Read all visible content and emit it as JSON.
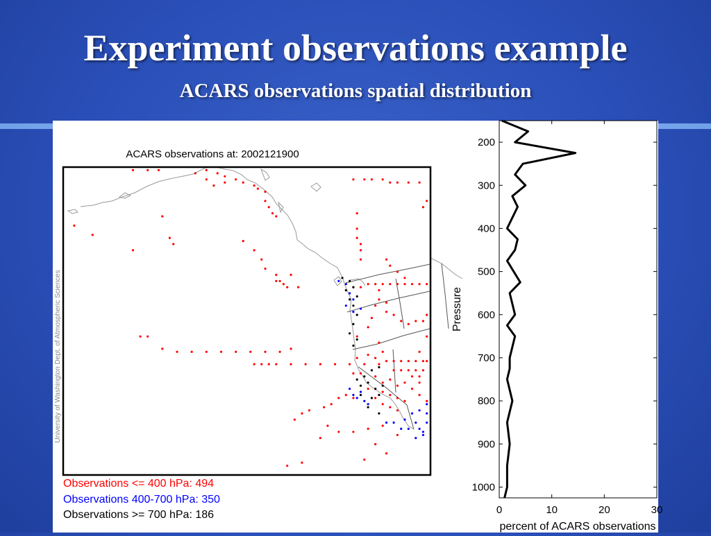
{
  "slide": {
    "title": "Experiment observations example",
    "subtitle": "ACARS observations spatial distribution"
  },
  "colors": {
    "red": "#ff0000",
    "blue": "#0000ff",
    "black": "#000000",
    "coast": "#999999"
  },
  "chart_data": [
    {
      "type": "scatter",
      "title": "ACARS observations at: 2002121900",
      "watermark": "University of Washington Dept. of Atmospheric Sciences",
      "legend": [
        {
          "label": "Observations <= 400 hPa: 494",
          "color": "#ff0000"
        },
        {
          "label": "Observations 400-700 hPa: 350",
          "color": "#0000ff"
        },
        {
          "label": "Observations >= 700 hPa: 186",
          "color": "#000000"
        }
      ],
      "series": [
        {
          "color": "#ff0000",
          "points": [
            [
              0.19,
              0.01
            ],
            [
              0.23,
              0.01
            ],
            [
              0.26,
              0.01
            ],
            [
              0.36,
              0.02
            ],
            [
              0.39,
              0.01
            ],
            [
              0.42,
              0.02
            ],
            [
              0.44,
              0.03
            ],
            [
              0.39,
              0.04
            ],
            [
              0.41,
              0.06
            ],
            [
              0.44,
              0.05
            ],
            [
              0.47,
              0.04
            ],
            [
              0.49,
              0.05
            ],
            [
              0.52,
              0.06
            ],
            [
              0.53,
              0.07
            ],
            [
              0.55,
              0.08
            ],
            [
              0.55,
              0.11
            ],
            [
              0.56,
              0.13
            ],
            [
              0.57,
              0.15
            ],
            [
              0.58,
              0.16
            ],
            [
              0.79,
              0.04
            ],
            [
              0.82,
              0.04
            ],
            [
              0.84,
              0.04
            ],
            [
              0.87,
              0.04
            ],
            [
              0.89,
              0.05
            ],
            [
              0.91,
              0.05
            ],
            [
              0.94,
              0.05
            ],
            [
              0.97,
              0.05
            ],
            [
              0.99,
              0.11
            ],
            [
              0.98,
              0.13
            ],
            [
              0.03,
              0.19
            ],
            [
              0.08,
              0.22
            ],
            [
              0.27,
              0.16
            ],
            [
              0.29,
              0.23
            ],
            [
              0.3,
              0.25
            ],
            [
              0.19,
              0.27
            ],
            [
              0.49,
              0.24
            ],
            [
              0.52,
              0.27
            ],
            [
              0.54,
              0.3
            ],
            [
              0.55,
              0.33
            ],
            [
              0.58,
              0.35
            ],
            [
              0.59,
              0.37
            ],
            [
              0.62,
              0.35
            ],
            [
              0.64,
              0.39
            ],
            [
              0.8,
              0.15
            ],
            [
              0.8,
              0.2
            ],
            [
              0.8,
              0.23
            ],
            [
              0.81,
              0.25
            ],
            [
              0.81,
              0.27
            ],
            [
              0.81,
              0.3
            ],
            [
              0.88,
              0.3
            ],
            [
              0.89,
              0.32
            ],
            [
              0.91,
              0.34
            ],
            [
              0.93,
              0.36
            ],
            [
              0.58,
              0.37
            ],
            [
              0.6,
              0.38
            ],
            [
              0.61,
              0.39
            ],
            [
              0.83,
              0.38
            ],
            [
              0.85,
              0.38
            ],
            [
              0.87,
              0.38
            ],
            [
              0.89,
              0.38
            ],
            [
              0.91,
              0.38
            ],
            [
              0.93,
              0.38
            ],
            [
              0.95,
              0.38
            ],
            [
              0.97,
              0.38
            ],
            [
              0.99,
              0.38
            ],
            [
              0.79,
              0.39
            ],
            [
              0.81,
              0.39
            ],
            [
              0.86,
              0.4
            ],
            [
              0.86,
              0.43
            ],
            [
              0.88,
              0.44
            ],
            [
              0.88,
              0.47
            ],
            [
              0.9,
              0.48
            ],
            [
              0.92,
              0.5
            ],
            [
              0.94,
              0.51
            ],
            [
              0.96,
              0.5
            ],
            [
              0.98,
              0.5
            ],
            [
              0.99,
              0.48
            ],
            [
              0.85,
              0.45
            ],
            [
              0.84,
              0.49
            ],
            [
              0.83,
              0.52
            ],
            [
              0.8,
              0.55
            ],
            [
              0.86,
              0.57
            ],
            [
              0.99,
              0.55
            ],
            [
              0.97,
              0.6
            ],
            [
              0.52,
              0.64
            ],
            [
              0.54,
              0.64
            ],
            [
              0.56,
              0.64
            ],
            [
              0.58,
              0.64
            ],
            [
              0.62,
              0.64
            ],
            [
              0.66,
              0.64
            ],
            [
              0.7,
              0.64
            ],
            [
              0.74,
              0.64
            ],
            [
              0.78,
              0.64
            ],
            [
              0.82,
              0.64
            ],
            [
              0.86,
              0.64
            ],
            [
              0.88,
              0.63
            ],
            [
              0.9,
              0.63
            ],
            [
              0.92,
              0.63
            ],
            [
              0.94,
              0.63
            ],
            [
              0.96,
              0.63
            ],
            [
              0.98,
              0.63
            ],
            [
              0.99,
              0.63
            ],
            [
              0.9,
              0.66
            ],
            [
              0.92,
              0.66
            ],
            [
              0.94,
              0.66
            ],
            [
              0.96,
              0.66
            ],
            [
              0.98,
              0.66
            ],
            [
              0.8,
              0.62
            ],
            [
              0.83,
              0.61
            ],
            [
              0.85,
              0.62
            ],
            [
              0.87,
              0.6
            ],
            [
              0.79,
              0.67
            ],
            [
              0.81,
              0.67
            ],
            [
              0.85,
              0.68
            ],
            [
              0.87,
              0.7
            ],
            [
              0.89,
              0.69
            ],
            [
              0.91,
              0.71
            ],
            [
              0.93,
              0.7
            ],
            [
              0.95,
              0.72
            ],
            [
              0.97,
              0.7
            ],
            [
              0.83,
              0.72
            ],
            [
              0.85,
              0.72
            ],
            [
              0.87,
              0.73
            ],
            [
              0.89,
              0.74
            ],
            [
              0.91,
              0.75
            ],
            [
              0.93,
              0.76
            ],
            [
              0.85,
              0.75
            ],
            [
              0.87,
              0.77
            ],
            [
              0.89,
              0.78
            ],
            [
              0.91,
              0.79
            ],
            [
              0.79,
              0.75
            ],
            [
              0.77,
              0.74
            ],
            [
              0.75,
              0.75
            ],
            [
              0.73,
              0.77
            ],
            [
              0.71,
              0.78
            ],
            [
              0.67,
              0.79
            ],
            [
              0.65,
              0.8
            ],
            [
              0.63,
              0.82
            ],
            [
              0.97,
              0.74
            ],
            [
              0.99,
              0.76
            ],
            [
              0.79,
              0.86
            ],
            [
              0.83,
              0.85
            ],
            [
              0.87,
              0.84
            ],
            [
              0.91,
              0.87
            ],
            [
              0.85,
              0.9
            ],
            [
              0.88,
              0.93
            ],
            [
              0.82,
              0.95
            ],
            [
              0.72,
              0.84
            ],
            [
              0.75,
              0.86
            ],
            [
              0.7,
              0.88
            ],
            [
              0.65,
              0.96
            ],
            [
              0.61,
              0.97
            ],
            [
              0.97,
              0.68
            ],
            [
              0.95,
              0.68
            ],
            [
              0.21,
              0.55
            ],
            [
              0.23,
              0.55
            ],
            [
              0.27,
              0.59
            ],
            [
              0.31,
              0.6
            ],
            [
              0.35,
              0.6
            ],
            [
              0.39,
              0.6
            ],
            [
              0.43,
              0.6
            ],
            [
              0.47,
              0.6
            ],
            [
              0.51,
              0.6
            ],
            [
              0.55,
              0.6
            ],
            [
              0.59,
              0.6
            ],
            [
              0.62,
              0.59
            ]
          ]
        },
        {
          "color": "#0000ff",
          "points": [
            [
              0.75,
              0.37
            ],
            [
              0.77,
              0.38
            ],
            [
              0.78,
              0.41
            ],
            [
              0.79,
              0.43
            ],
            [
              0.77,
              0.45
            ],
            [
              0.79,
              0.47
            ],
            [
              0.81,
              0.46
            ],
            [
              0.78,
              0.72
            ],
            [
              0.79,
              0.74
            ],
            [
              0.8,
              0.75
            ],
            [
              0.81,
              0.73
            ],
            [
              0.82,
              0.76
            ],
            [
              0.83,
              0.77
            ],
            [
              0.88,
              0.83
            ],
            [
              0.9,
              0.83
            ],
            [
              0.92,
              0.85
            ],
            [
              0.94,
              0.85
            ],
            [
              0.96,
              0.83
            ],
            [
              0.97,
              0.85
            ],
            [
              0.98,
              0.86
            ],
            [
              0.99,
              0.83
            ],
            [
              0.93,
              0.82
            ],
            [
              0.95,
              0.8
            ],
            [
              0.97,
              0.79
            ],
            [
              0.99,
              0.8
            ],
            [
              0.99,
              0.77
            ],
            [
              0.98,
              0.87
            ],
            [
              0.96,
              0.88
            ]
          ]
        },
        {
          "color": "#000000",
          "points": [
            [
              0.76,
              0.36
            ],
            [
              0.78,
              0.37
            ],
            [
              0.77,
              0.4
            ],
            [
              0.79,
              0.39
            ],
            [
              0.78,
              0.43
            ],
            [
              0.8,
              0.42
            ],
            [
              0.79,
              0.45
            ],
            [
              0.8,
              0.48
            ],
            [
              0.79,
              0.51
            ],
            [
              0.78,
              0.54
            ],
            [
              0.8,
              0.56
            ],
            [
              0.79,
              0.58
            ],
            [
              0.81,
              0.71
            ],
            [
              0.83,
              0.7
            ],
            [
              0.8,
              0.69
            ],
            [
              0.82,
              0.68
            ],
            [
              0.84,
              0.66
            ],
            [
              0.86,
              0.65
            ],
            [
              0.81,
              0.74
            ],
            [
              0.84,
              0.75
            ],
            [
              0.86,
              0.74
            ],
            [
              0.85,
              0.72
            ],
            [
              0.87,
              0.71
            ],
            [
              0.83,
              0.78
            ],
            [
              0.86,
              0.8
            ]
          ]
        }
      ]
    },
    {
      "type": "line",
      "xlabel": "percent of ACARS observations",
      "ylabel": "Pressure",
      "xlim": [
        0,
        30
      ],
      "ylim": [
        1025,
        150
      ],
      "xticks": [
        0,
        10,
        20,
        30
      ],
      "yticks": [
        200,
        300,
        400,
        500,
        600,
        700,
        800,
        900,
        1000
      ],
      "series": [
        {
          "x": [
            0.5,
            5.5,
            3.0,
            14.5,
            4.5,
            3.0,
            5.0,
            2.5,
            3.5,
            1.5,
            3.5,
            3.0,
            1.5,
            4.0,
            2.0,
            3.0,
            1.5,
            3.0,
            2.0,
            2.0,
            1.5,
            2.5,
            1.5,
            2.0,
            1.5,
            1.5,
            1.0
          ],
          "y": [
            150,
            175,
            200,
            225,
            250,
            275,
            300,
            325,
            350,
            400,
            425,
            450,
            475,
            525,
            550,
            600,
            625,
            650,
            700,
            725,
            750,
            800,
            850,
            900,
            950,
            1000,
            1025
          ]
        }
      ]
    }
  ]
}
